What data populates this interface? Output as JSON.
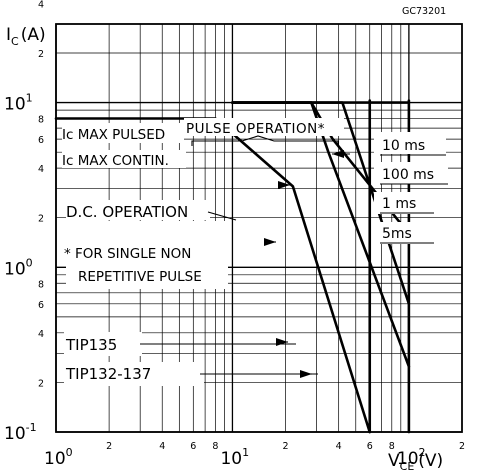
{
  "chart_data": {
    "type": "line",
    "figure_id": "GC73201",
    "xlabel": "V",
    "xlabel_sub": "CE",
    "xlabel_unit": "(V)",
    "ylabel": "I",
    "ylabel_sub": "C",
    "ylabel_unit": "(A)",
    "xscale": "log",
    "yscale": "log",
    "xlim": [
      1,
      200
    ],
    "ylim": [
      0.1,
      30
    ],
    "x_ticks": [
      {
        "value": 1,
        "base": "10",
        "exp": "0"
      },
      {
        "value": 2,
        "label": "2"
      },
      {
        "value": 4,
        "label": "4"
      },
      {
        "value": 6,
        "label": "6"
      },
      {
        "value": 8,
        "label": "8"
      },
      {
        "value": 10,
        "base": "10",
        "exp": "1"
      },
      {
        "value": 20,
        "label": "2"
      },
      {
        "value": 40,
        "label": "4"
      },
      {
        "value": 60,
        "label": "6"
      },
      {
        "value": 80,
        "label": "8"
      },
      {
        "value": 100,
        "base": "10",
        "exp": "2"
      },
      {
        "value": 200,
        "label": "2"
      }
    ],
    "y_ticks": [
      {
        "value": 0.1,
        "base": "10",
        "exp": "-1"
      },
      {
        "value": 0.2,
        "label": "2"
      },
      {
        "value": 0.4,
        "label": "4"
      },
      {
        "value": 0.6,
        "label": "6"
      },
      {
        "value": 0.8,
        "label": "8"
      },
      {
        "value": 1,
        "base": "10",
        "exp": "0"
      },
      {
        "value": 2,
        "label": "2"
      },
      {
        "value": 4,
        "label": "4"
      },
      {
        "value": 6,
        "label": "6"
      },
      {
        "value": 8,
        "label": "8"
      },
      {
        "value": 10,
        "base": "10",
        "exp": "1"
      },
      {
        "value": 20,
        "label": "2"
      },
      {
        "value": 40,
        "label": "4"
      }
    ],
    "grid": true,
    "series": [
      {
        "name": "D.C. OPERATION",
        "points": [
          [
            1,
            8
          ],
          [
            8,
            8
          ],
          [
            22,
            3.1
          ],
          [
            60,
            0.1
          ]
        ]
      },
      {
        "name": "5ms",
        "points": [
          [
            10,
            10
          ],
          [
            28,
            10
          ],
          [
            35,
            5
          ],
          [
            100,
            0.25
          ]
        ]
      },
      {
        "name": "1 ms",
        "points": [
          [
            10,
            10
          ],
          [
            42,
            10
          ],
          [
            100,
            0.6
          ]
        ]
      },
      {
        "name": "100 ms",
        "points": [
          [
            10,
            10
          ],
          [
            28,
            10
          ],
          [
            37,
            6
          ],
          [
            100,
            1.6
          ]
        ]
      },
      {
        "name": "10 ms",
        "points": [
          [
            10,
            10
          ],
          [
            100,
            10
          ]
        ]
      }
    ],
    "verticals": [
      {
        "name": "TIP135",
        "x": 60,
        "y": [
          0.1,
          10
        ]
      },
      {
        "name": "TIP132-137",
        "x": 100,
        "y": [
          0.1,
          10
        ]
      }
    ],
    "annotations": [
      {
        "name": "ic-max-pulsed",
        "text": "Ic MAX PULSED"
      },
      {
        "name": "pulse-operation",
        "text": "PULSE OPERATION*"
      },
      {
        "name": "ic-max-contin",
        "text": "Ic MAX CONTIN."
      },
      {
        "name": "dc-operation",
        "text": "D.C. OPERATION"
      },
      {
        "name": "footnote-line1",
        "text": "* FOR SINGLE NON"
      },
      {
        "name": "footnote-line2",
        "text": "REPETITIVE PULSE"
      },
      {
        "name": "label-10ms",
        "text": "10 ms"
      },
      {
        "name": "label-100ms",
        "text": "100 ms"
      },
      {
        "name": "label-1ms",
        "text": "1 ms"
      },
      {
        "name": "label-5ms",
        "text": "5ms"
      },
      {
        "name": "label-tip135",
        "text": "TIP135"
      },
      {
        "name": "label-tip132-137",
        "text": "TIP132-137"
      }
    ]
  }
}
